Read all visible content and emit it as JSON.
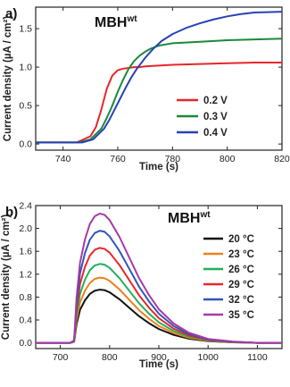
{
  "chart_data": [
    {
      "panel_label": "a)",
      "type": "line",
      "title": "MBH",
      "title_superscript": "wt",
      "xlabel": "Time (s)",
      "ylabel": "Current density (µA / cm²)",
      "xlim": [
        730,
        820
      ],
      "ylim": [
        -0.08,
        1.78
      ],
      "xticks": [
        740,
        760,
        780,
        800,
        820
      ],
      "yticks": [
        0.0,
        0.5,
        1.0,
        1.5
      ],
      "ytick_labels": [
        "0.0",
        "0.5",
        "1.0",
        "1.5"
      ],
      "legend_position": "bottom-right",
      "series": [
        {
          "name": "0.2 V",
          "color": "#e8262b",
          "x": [
            730,
            745,
            750,
            752,
            754,
            756,
            758,
            760,
            762,
            764,
            766,
            768,
            770,
            775,
            780,
            790,
            800,
            810,
            820
          ],
          "y": [
            0.02,
            0.02,
            0.1,
            0.22,
            0.45,
            0.72,
            0.89,
            0.96,
            0.98,
            0.99,
            1.0,
            1.0,
            1.01,
            1.02,
            1.03,
            1.04,
            1.05,
            1.06,
            1.06
          ]
        },
        {
          "name": "0.3 V",
          "color": "#1a8a3a",
          "x": [
            730,
            746,
            750,
            754,
            756,
            758,
            760,
            762,
            764,
            766,
            768,
            770,
            772,
            775,
            780,
            790,
            800,
            810,
            820
          ],
          "y": [
            0.02,
            0.02,
            0.06,
            0.2,
            0.34,
            0.5,
            0.68,
            0.84,
            0.98,
            1.08,
            1.15,
            1.2,
            1.24,
            1.28,
            1.31,
            1.33,
            1.35,
            1.36,
            1.37
          ]
        },
        {
          "name": "0.4 V",
          "color": "#2742b5",
          "x": [
            730,
            747,
            751,
            755,
            757,
            759,
            761,
            763,
            765,
            767,
            770,
            773,
            776,
            780,
            785,
            790,
            795,
            800,
            805,
            810,
            820
          ],
          "y": [
            0.02,
            0.02,
            0.06,
            0.2,
            0.32,
            0.46,
            0.6,
            0.74,
            0.87,
            0.98,
            1.12,
            1.24,
            1.34,
            1.43,
            1.51,
            1.57,
            1.62,
            1.66,
            1.69,
            1.71,
            1.72
          ]
        }
      ]
    },
    {
      "panel_label": "b)",
      "type": "line",
      "title": "MBH",
      "title_superscript": "wt",
      "xlabel": "Time (s)",
      "ylabel": "Current density (µA / cm²)",
      "xlim": [
        650,
        1150
      ],
      "ylim": [
        -0.1,
        2.4
      ],
      "xticks": [
        700,
        800,
        900,
        1000,
        1100
      ],
      "yticks": [
        0.0,
        0.4,
        0.8,
        1.2,
        1.6,
        2.0,
        2.4
      ],
      "ytick_labels": [
        "0.0",
        "0.4",
        "0.8",
        "1.2",
        "1.6",
        "2.0",
        "2.4"
      ],
      "legend_position": "top-right",
      "series": [
        {
          "name": "20 °C",
          "color": "#111111",
          "peak": 0.93
        },
        {
          "name": "23 °C",
          "color": "#f07f1a",
          "peak": 1.14
        },
        {
          "name": "26 °C",
          "color": "#1fb05a",
          "peak": 1.38
        },
        {
          "name": "29 °C",
          "color": "#e8262b",
          "peak": 1.66
        },
        {
          "name": "32 °C",
          "color": "#2f56b8",
          "peak": 1.96
        },
        {
          "name": "35 °C",
          "color": "#a53aa8",
          "peak": 2.26
        }
      ],
      "x": [
        650,
        720,
        728,
        733,
        740,
        750,
        760,
        770,
        780,
        790,
        800,
        820,
        840,
        860,
        880,
        900,
        930,
        960,
        1000,
        1050,
        1100,
        1150
      ],
      "shape_fraction_of_peak": [
        0.0,
        0.0,
        0.02,
        0.35,
        0.62,
        0.8,
        0.92,
        0.98,
        1.0,
        0.99,
        0.95,
        0.82,
        0.66,
        0.5,
        0.37,
        0.26,
        0.15,
        0.08,
        0.03,
        0.01,
        0.0,
        0.0
      ]
    }
  ]
}
